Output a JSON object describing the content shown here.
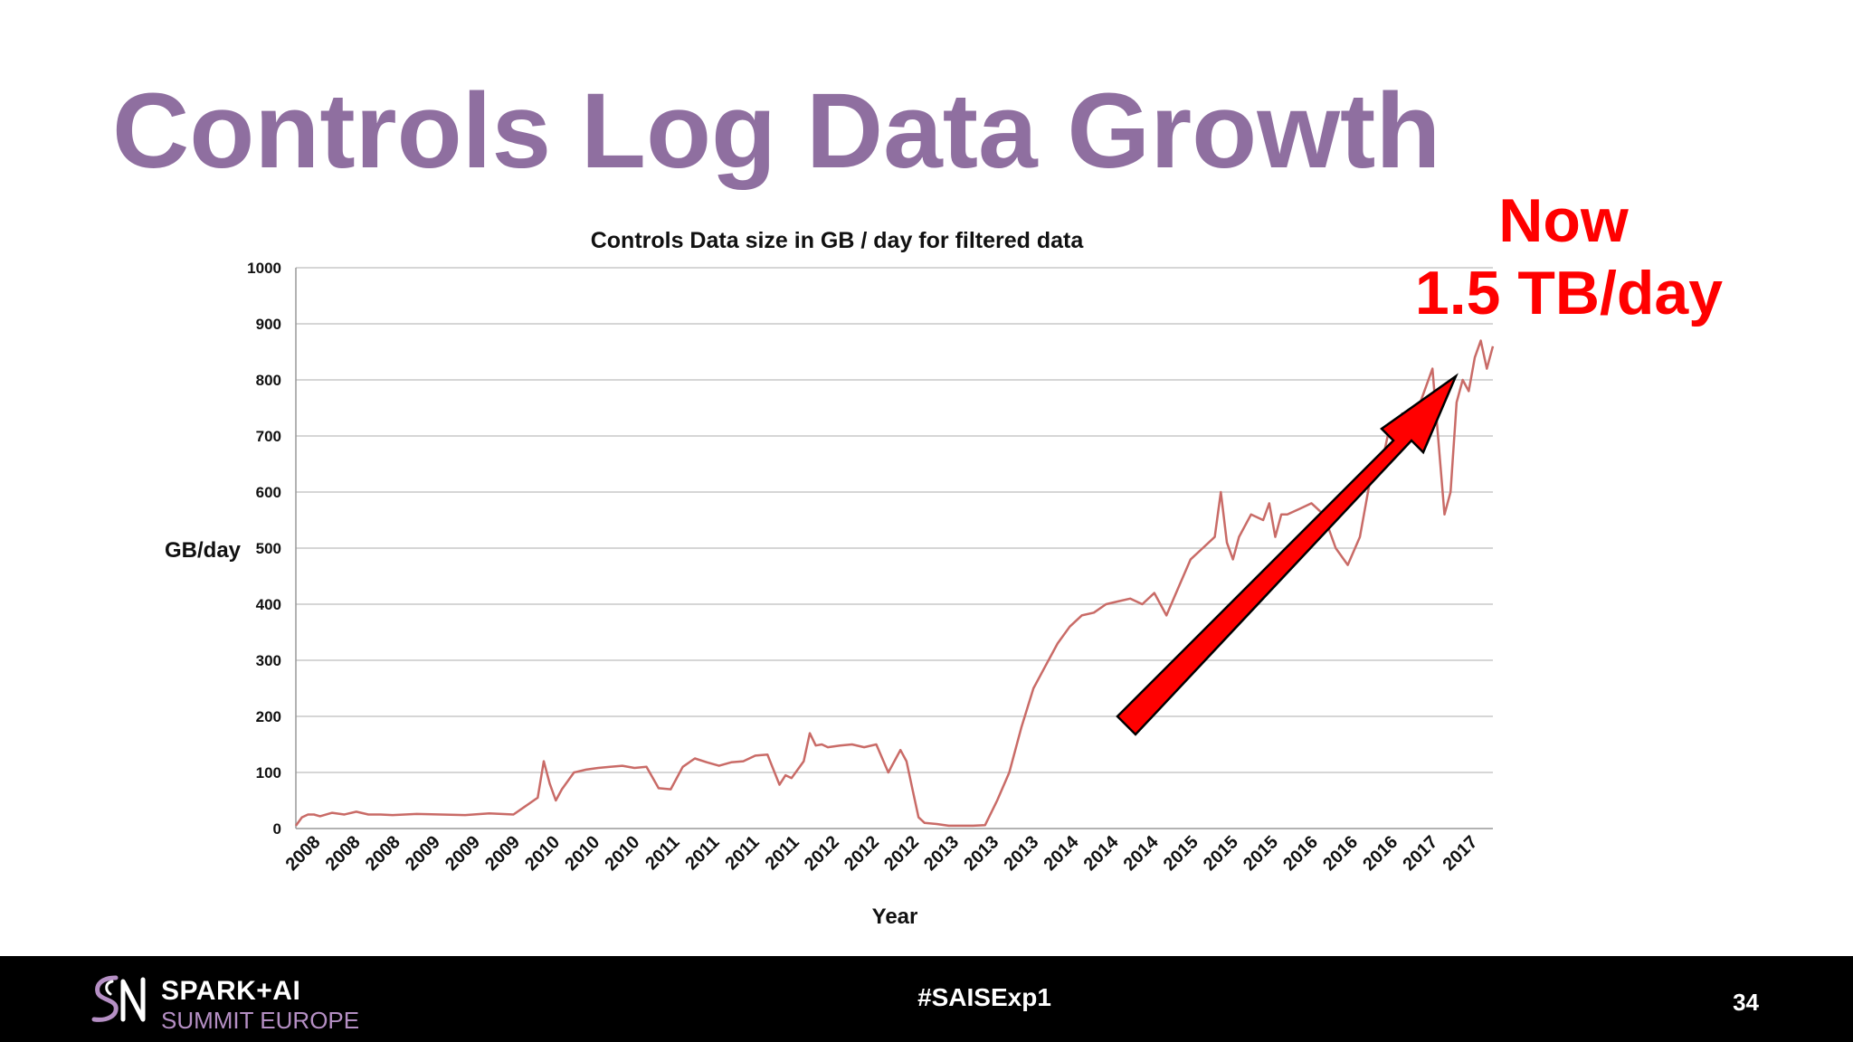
{
  "slide": {
    "title": "Controls Log Data Growth",
    "title_color": "#8f6fa0",
    "callout_line1": "Now",
    "callout_line2": "1.5 TB/day",
    "callout_color": "#ff0000"
  },
  "footer": {
    "brand_line1": "SPARK+AI",
    "brand_line2": "SUMMIT EUROPE",
    "hashtag": "#SAISExp1",
    "page_number": "34",
    "accent_color": "#b58fc4"
  },
  "chart_data": {
    "type": "line",
    "title": "Controls Data size in GB / day for filtered data",
    "xlabel": "Year",
    "ylabel": "GB/day",
    "ylim": [
      0,
      1000
    ],
    "yticks": [
      0,
      100,
      200,
      300,
      400,
      500,
      600,
      700,
      800,
      900,
      1000
    ],
    "grid": true,
    "line_color": "#c96b67",
    "x_tick_labels": [
      "2008",
      "2008",
      "2008",
      "2009",
      "2009",
      "2009",
      "2010",
      "2010",
      "2010",
      "2011",
      "2011",
      "2011",
      "2011",
      "2012",
      "2012",
      "2012",
      "2013",
      "2013",
      "2013",
      "2014",
      "2014",
      "2014",
      "2015",
      "2015",
      "2015",
      "2016",
      "2016",
      "2016",
      "2017",
      "2017"
    ],
    "x_range": [
      2008.0,
      2017.9
    ],
    "series": [
      {
        "x": [
          2008.0,
          2008.05,
          2008.1,
          2008.15,
          2008.2,
          2008.3,
          2008.4,
          2008.5,
          2008.6,
          2008.7,
          2008.8,
          2008.9,
          2009.0,
          2009.2,
          2009.4,
          2009.6,
          2009.8,
          2009.9,
          2010.0,
          2010.05,
          2010.1,
          2010.15,
          2010.2,
          2010.3,
          2010.4,
          2010.5,
          2010.6,
          2010.7,
          2010.8,
          2010.9,
          2011.0,
          2011.1,
          2011.2,
          2011.3,
          2011.4,
          2011.5,
          2011.6,
          2011.7,
          2011.8,
          2011.9,
          2012.0,
          2012.05,
          2012.1,
          2012.2,
          2012.25,
          2012.3,
          2012.35,
          2012.4,
          2012.5,
          2012.6,
          2012.7,
          2012.8,
          2012.9,
          2013.0,
          2013.05,
          2013.1,
          2013.15,
          2013.2,
          2013.3,
          2013.4,
          2013.5,
          2013.6,
          2013.7,
          2013.8,
          2013.9,
          2014.0,
          2014.1,
          2014.2,
          2014.3,
          2014.4,
          2014.5,
          2014.6,
          2014.7,
          2014.8,
          2014.9,
          2015.0,
          2015.1,
          2015.2,
          2015.3,
          2015.4,
          2015.5,
          2015.6,
          2015.65,
          2015.7,
          2015.75,
          2015.8,
          2015.9,
          2016.0,
          2016.05,
          2016.1,
          2016.15,
          2016.2,
          2016.3,
          2016.4,
          2016.5,
          2016.6,
          2016.7,
          2016.8,
          2016.9,
          2017.0,
          2017.05,
          2017.1,
          2017.15,
          2017.2,
          2017.3,
          2017.4,
          2017.5,
          2017.55,
          2017.6,
          2017.65,
          2017.7,
          2017.75,
          2017.8,
          2017.85,
          2017.9
        ],
        "y": [
          5,
          20,
          25,
          25,
          22,
          28,
          25,
          30,
          25,
          25,
          24,
          25,
          26,
          25,
          24,
          27,
          25,
          40,
          55,
          120,
          80,
          50,
          70,
          100,
          105,
          108,
          110,
          112,
          108,
          110,
          72,
          70,
          110,
          125,
          118,
          112,
          118,
          120,
          130,
          132,
          78,
          95,
          90,
          120,
          170,
          148,
          150,
          145,
          148,
          150,
          145,
          150,
          100,
          140,
          120,
          70,
          20,
          10,
          8,
          5,
          5,
          5,
          6,
          50,
          100,
          180,
          250,
          290,
          330,
          360,
          380,
          385,
          400,
          405,
          410,
          400,
          420,
          380,
          430,
          480,
          500,
          520,
          600,
          510,
          480,
          520,
          560,
          550,
          580,
          520,
          560,
          560,
          570,
          580,
          560,
          500,
          470,
          520,
          640,
          670,
          720,
          700,
          740,
          720,
          760,
          820,
          560,
          600,
          760,
          800,
          780,
          840,
          870,
          820,
          860
        ]
      }
    ]
  }
}
